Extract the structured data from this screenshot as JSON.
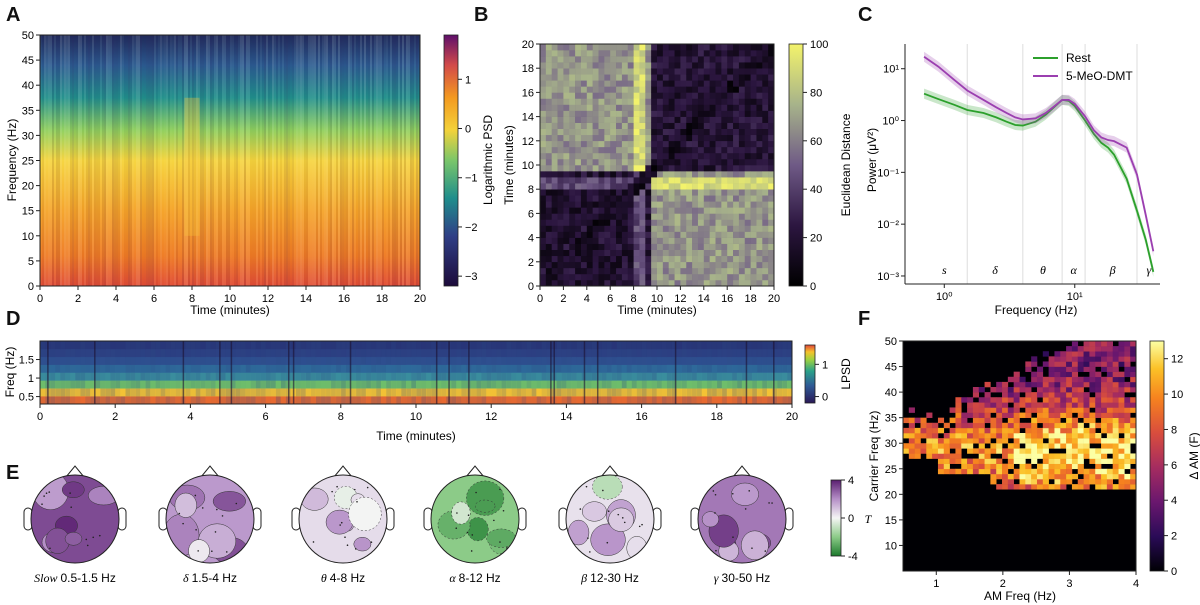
{
  "panels": {
    "A": "A",
    "B": "B",
    "C": "C",
    "D": "D",
    "E": "E",
    "F": "F"
  },
  "colors": {
    "rest": "#2ca02c",
    "dmt": "#9b3fb0",
    "band_line": "#dddddd",
    "axis": "#222222"
  },
  "chart_data": [
    {
      "panel": "A",
      "type": "heatmap",
      "xlabel": "Time (minutes)",
      "ylabel": "Frequency (Hz)",
      "xlim": [
        0,
        20
      ],
      "ylim": [
        0,
        50
      ],
      "xticks": [
        "0",
        "2",
        "4",
        "6",
        "8",
        "10",
        "12",
        "14",
        "16",
        "18",
        "20"
      ],
      "yticks": [
        "0",
        "5",
        "10",
        "15",
        "20",
        "25",
        "30",
        "35",
        "40",
        "45",
        "50"
      ],
      "colorbar": {
        "label": "Logarithmic PSD",
        "range": [
          -3.2,
          1.9
        ],
        "ticks": [
          "1",
          "0",
          "−1",
          "−2",
          "−3"
        ],
        "colormap": "inferno"
      }
    },
    {
      "panel": "B",
      "type": "heatmap",
      "xlabel": "Time (minutes)",
      "ylabel": "Time (minutes)",
      "xlim": [
        0,
        20
      ],
      "ylim": [
        0,
        20
      ],
      "xticks": [
        "0",
        "2",
        "4",
        "6",
        "8",
        "10",
        "12",
        "14",
        "16",
        "18",
        "20"
      ],
      "yticks": [
        "0",
        "2",
        "4",
        "6",
        "8",
        "10",
        "12",
        "14",
        "16",
        "18",
        "20"
      ],
      "colorbar": {
        "label": "Euclidean Distance",
        "range": [
          0,
          100
        ],
        "ticks": [
          "100",
          "80",
          "60",
          "40",
          "20",
          "0"
        ],
        "colormap": "viridis-dark"
      }
    },
    {
      "panel": "C",
      "type": "line",
      "xlabel": "Frequency (Hz)",
      "ylabel": "Power (μV²)",
      "xscale": "log",
      "yscale": "log",
      "xlim": [
        0.5,
        45
      ],
      "ylim": [
        0.0007,
        30
      ],
      "xticks": [
        "10⁰",
        "10¹"
      ],
      "yticks": [
        "10⁻³",
        "10⁻²",
        "10⁻¹",
        "10⁰",
        "10¹"
      ],
      "legend": "top-right",
      "band_edges": [
        1.5,
        4,
        8,
        12,
        30
      ],
      "band_labels": [
        {
          "label": "s",
          "x": 1.0
        },
        {
          "label": "δ",
          "x": 2.45
        },
        {
          "label": "θ",
          "x": 5.7
        },
        {
          "label": "α",
          "x": 9.8
        },
        {
          "label": "β",
          "x": 19.5
        },
        {
          "label": "γ",
          "x": 37
        }
      ],
      "series": [
        {
          "name": "Rest",
          "x": [
            0.7,
            0.9,
            1.2,
            1.5,
            2,
            2.5,
            3,
            3.5,
            4,
            5,
            6,
            7,
            8,
            9,
            10,
            12,
            14,
            16,
            18,
            20,
            25,
            30,
            35,
            40
          ],
          "y": [
            3.3,
            2.6,
            2.0,
            1.6,
            1.4,
            1.15,
            0.95,
            0.82,
            0.8,
            0.95,
            1.3,
            1.85,
            2.5,
            2.4,
            1.9,
            1.0,
            0.55,
            0.37,
            0.3,
            0.22,
            0.075,
            0.018,
            0.005,
            0.0012
          ]
        },
        {
          "name": "5-MeO-DMT",
          "x": [
            0.7,
            0.9,
            1.2,
            1.5,
            2,
            2.5,
            3,
            3.5,
            4,
            5,
            6,
            7,
            8,
            9,
            10,
            12,
            14,
            16,
            18,
            20,
            25,
            30,
            35,
            40
          ],
          "y": [
            17,
            11,
            6,
            3.8,
            2.5,
            1.8,
            1.4,
            1.15,
            1.05,
            1.1,
            1.4,
            1.9,
            2.5,
            2.5,
            2.1,
            1.2,
            0.65,
            0.47,
            0.42,
            0.4,
            0.3,
            0.09,
            0.015,
            0.003
          ]
        }
      ]
    },
    {
      "panel": "D",
      "type": "heatmap",
      "xlabel": "Time (minutes)",
      "ylabel": "Freq (Hz)",
      "xlim": [
        0,
        20
      ],
      "ylim": [
        0.3,
        2.0
      ],
      "xticks": [
        "0",
        "2",
        "4",
        "6",
        "8",
        "10",
        "12",
        "14",
        "16",
        "18",
        "20"
      ],
      "yticks": [
        "1.5",
        "1",
        "0.5"
      ],
      "colorbar": {
        "label": "LPSD",
        "range": [
          -0.2,
          1.6
        ],
        "ticks": [
          "1",
          "0"
        ],
        "colormap": "viridis"
      }
    },
    {
      "panel": "E",
      "type": "heatmap",
      "subtype": "topomaps",
      "topomaps": [
        {
          "band": "Slow",
          "range": "0.5-1.5 Hz",
          "mean_t": 3.2
        },
        {
          "band": "δ",
          "range": "1.5-4 Hz",
          "mean_t": 1.8
        },
        {
          "band": "θ",
          "range": "4-8 Hz",
          "mean_t": 0.5
        },
        {
          "band": "α",
          "range": "8-12 Hz",
          "mean_t": -2.0
        },
        {
          "band": "β",
          "range": "12-30 Hz",
          "mean_t": 0.4
        },
        {
          "band": "γ",
          "range": "30-50 Hz",
          "mean_t": 2.4
        }
      ],
      "colorbar": {
        "label": "T",
        "range": [
          -4,
          4
        ],
        "ticks": [
          "4",
          "0",
          "-4"
        ]
      }
    },
    {
      "panel": "F",
      "type": "heatmap",
      "xlabel": "AM Freq (Hz)",
      "ylabel": "Carrier Freq (Hz)",
      "xlim": [
        0.5,
        4
      ],
      "ylim": [
        5,
        50
      ],
      "xticks": [
        "1",
        "2",
        "3",
        "4"
      ],
      "yticks": [
        "10",
        "15",
        "20",
        "25",
        "30",
        "35",
        "40",
        "45",
        "50"
      ],
      "colorbar": {
        "label": "Δ AM (F)",
        "range": [
          0,
          13
        ],
        "ticks": [
          "12",
          "10",
          "8",
          "6",
          "4",
          "2",
          "0"
        ],
        "colormap": "inferno"
      }
    }
  ]
}
